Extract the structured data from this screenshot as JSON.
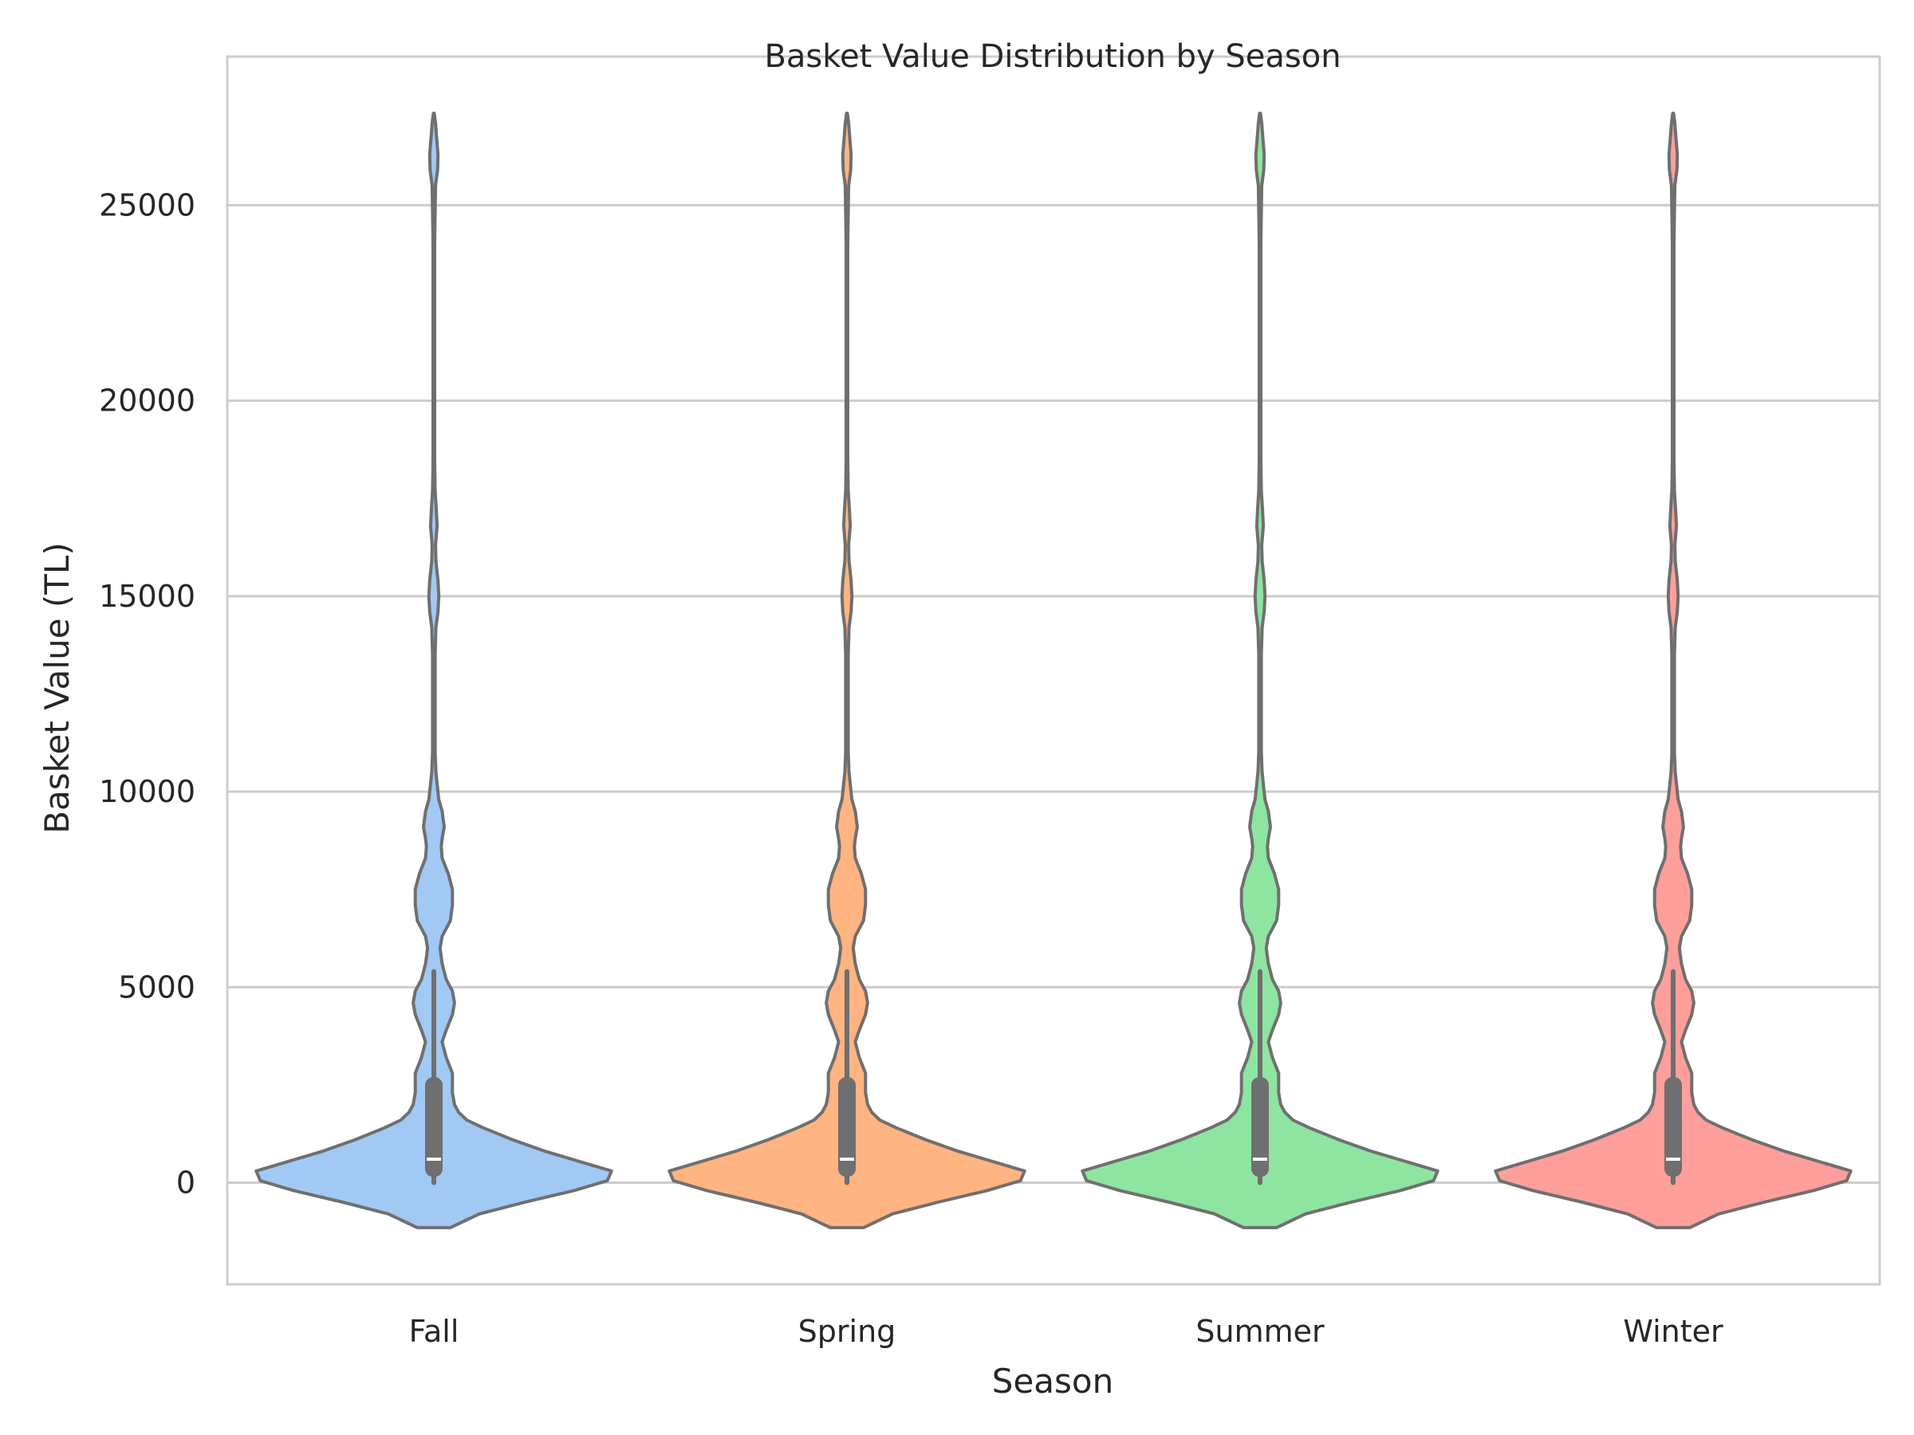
{
  "chart_data": {
    "type": "violin",
    "title": "Basket Value Distribution by Season",
    "xlabel": "Season",
    "ylabel": "Basket Value (TL)",
    "ylim": [
      -2600,
      28800
    ],
    "yticks": [
      0,
      5000,
      10000,
      15000,
      20000,
      25000
    ],
    "ytick_labels": [
      "0",
      "5000",
      "10000",
      "15000",
      "20000",
      "25000"
    ],
    "grid": "horizontal",
    "categories": [
      "Fall",
      "Spring",
      "Summer",
      "Winter"
    ],
    "colors": [
      "#a1c9f4",
      "#ffb482",
      "#8de5a1",
      "#ff9f9b"
    ],
    "outline_color": "#6f6f6f",
    "box_color": "#6f6f6f",
    "median_color": "#ffffff",
    "density_profile": {
      "y": [
        -1150,
        -800,
        -500,
        -200,
        50,
        300,
        550,
        800,
        1100,
        1400,
        1600,
        1800,
        2000,
        2300,
        2800,
        3200,
        3600,
        3900,
        4300,
        4600,
        4900,
        5200,
        5600,
        6000,
        6300,
        6700,
        7100,
        7500,
        7900,
        8300,
        8600,
        8800,
        9100,
        9500,
        9800,
        10200,
        10500,
        11000,
        12000,
        13500,
        14200,
        14600,
        15000,
        15400,
        15900,
        16300,
        16800,
        17200,
        17700,
        18500,
        20000,
        22000,
        24000,
        25500,
        25900,
        26300,
        26700,
        27100,
        27350
      ],
      "half_width": [
        0.04,
        0.11,
        0.22,
        0.34,
        0.42,
        0.43,
        0.35,
        0.27,
        0.19,
        0.12,
        0.08,
        0.06,
        0.05,
        0.045,
        0.045,
        0.03,
        0.02,
        0.03,
        0.045,
        0.05,
        0.045,
        0.03,
        0.02,
        0.015,
        0.02,
        0.04,
        0.045,
        0.045,
        0.035,
        0.02,
        0.018,
        0.02,
        0.025,
        0.02,
        0.012,
        0.008,
        0.005,
        0.003,
        0.003,
        0.003,
        0.005,
        0.01,
        0.012,
        0.01,
        0.005,
        0.004,
        0.008,
        0.006,
        0.003,
        0.002,
        0.002,
        0.002,
        0.002,
        0.004,
        0.009,
        0.01,
        0.007,
        0.004,
        0.001
      ]
    },
    "box": {
      "q1": 150,
      "median": 600,
      "q3": 2700,
      "whisker_low": 0,
      "whisker_high": 5400
    }
  }
}
